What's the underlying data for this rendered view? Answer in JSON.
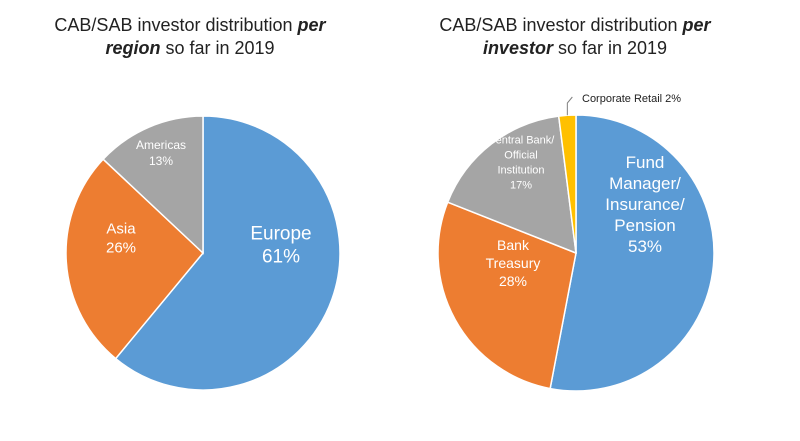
{
  "chart_data": [
    {
      "type": "pie",
      "title_pre": "CAB/SAB investor distribution",
      "title_em": "per region",
      "title_post": "so far in 2019",
      "slices": [
        {
          "label": "Europe",
          "pct_text": "61%",
          "value": 61,
          "color": "#5b9bd5"
        },
        {
          "label": "Asia",
          "pct_text": "26%",
          "value": 26,
          "color": "#ed7d31"
        },
        {
          "label": "Americas",
          "pct_text": "13%",
          "value": 13,
          "color": "#a5a5a5"
        }
      ]
    },
    {
      "type": "pie",
      "title_pre": "CAB/SAB investor distribution",
      "title_em": "per investor",
      "title_post": "so far in 2019",
      "slices": [
        {
          "label": "Fund Manager/ Insurance/ Pension",
          "lines": [
            "Fund",
            "Manager/",
            "Insurance/",
            "Pension"
          ],
          "pct_text": "53%",
          "value": 53,
          "color": "#5b9bd5"
        },
        {
          "label": "Bank Treasury",
          "lines": [
            "Bank",
            "Treasury"
          ],
          "pct_text": "28%",
          "value": 28,
          "color": "#ed7d31"
        },
        {
          "label": "Central Bank/ Official Institution",
          "lines": [
            "Central Bank/",
            "Official",
            "Institution"
          ],
          "pct_text": "17%",
          "value": 17,
          "color": "#a5a5a5"
        },
        {
          "label": "Corporate Retail",
          "pct_text": "2%",
          "value": 2,
          "color": "#ffc000",
          "callout": "Corporate Retail 2%"
        }
      ]
    }
  ]
}
